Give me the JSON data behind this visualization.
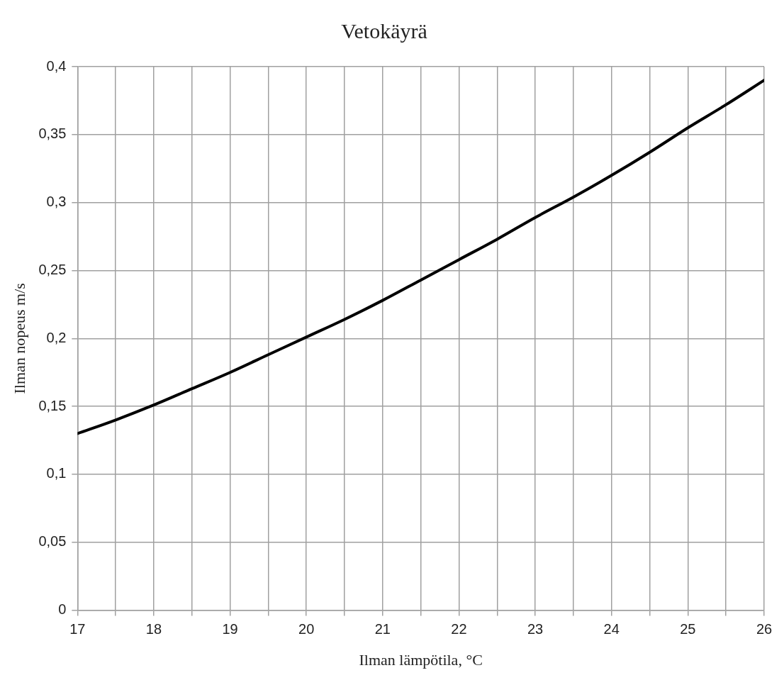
{
  "chart_data": {
    "type": "line",
    "title": "Vetokäyrä",
    "xlabel": "Ilman lämpötila, °C",
    "ylabel": "Ilman nopeus m/s",
    "x": [
      17,
      17.5,
      18,
      18.5,
      19,
      19.5,
      20,
      20.5,
      21,
      21.5,
      22,
      22.5,
      23,
      23.5,
      24,
      24.5,
      25,
      25.5,
      26
    ],
    "series": [
      {
        "color": "#000000",
        "values": [
          0.13,
          0.14,
          0.151,
          0.163,
          0.175,
          0.188,
          0.201,
          0.214,
          0.228,
          0.243,
          0.258,
          0.273,
          0.289,
          0.304,
          0.32,
          0.337,
          0.355,
          0.372,
          0.39
        ]
      }
    ],
    "xlim": [
      17,
      26
    ],
    "xticks": [
      17,
      {
        "value": 17.5,
        "label": null
      },
      18,
      {
        "value": 18.5,
        "label": null
      },
      19,
      {
        "value": 19.5,
        "label": null
      },
      20,
      {
        "value": 20.5,
        "label": null
      },
      21,
      {
        "value": 21.5,
        "label": null
      },
      22,
      {
        "value": 22.5,
        "label": null
      },
      23,
      {
        "value": 23.5,
        "label": null
      },
      24,
      {
        "value": 24.5,
        "label": null
      },
      25,
      {
        "value": 25.5,
        "label": null
      },
      26
    ],
    "ylim": [
      0,
      0.4
    ],
    "yticks": [
      0,
      {
        "value": 0.05,
        "label": "0,05"
      },
      {
        "value": 0.1,
        "label": "0,1"
      },
      {
        "value": 0.15,
        "label": "0,15"
      },
      {
        "value": 0.2,
        "label": "0,2"
      },
      {
        "value": 0.25,
        "label": "0,25"
      },
      {
        "value": 0.3,
        "label": "0,3"
      },
      {
        "value": 0.35,
        "label": "0,35"
      },
      {
        "value": 0.4,
        "label": "0,4"
      }
    ],
    "grid": true,
    "legend": false,
    "marker": "none",
    "line_style": "solid"
  }
}
